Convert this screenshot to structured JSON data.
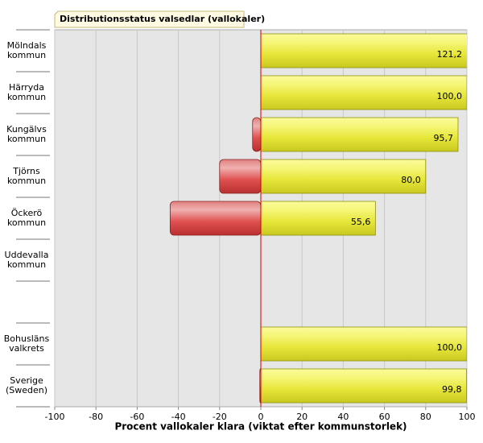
{
  "chart_data": {
    "type": "hbar",
    "title": "Distributionsstatus valsedlar (vallokaler)",
    "x_label": "Procent vallokaler klara (viktat efter kommunstorlek)",
    "categories": [
      "Mölndals kommun",
      "Härryda kommun",
      "Kungälvs kommun",
      "Tjörns kommun",
      "Öckerö kommun",
      "Uddevalla kommun",
      null,
      "Bohusläns valkrets",
      "Sverige (Sweden)"
    ],
    "series": [
      {
        "color": "#e8e84a",
        "values": [
          121.2,
          100.0,
          95.7,
          80.0,
          55.6,
          null,
          null,
          100.0,
          99.8
        ],
        "value_labels": [
          "121,2",
          "100,0",
          "95,7",
          "80,0",
          "55,6",
          null,
          null,
          "100,0",
          "99,8"
        ]
      },
      {
        "color": "#d94a4a",
        "values": [
          null,
          null,
          -4,
          -20,
          -44,
          null,
          null,
          null,
          -0.5
        ]
      }
    ],
    "xlim": [
      -100,
      100
    ],
    "xticks": [
      -100,
      -80,
      -60,
      -40,
      -20,
      0,
      20,
      40,
      60,
      80,
      100
    ],
    "grid": true
  }
}
